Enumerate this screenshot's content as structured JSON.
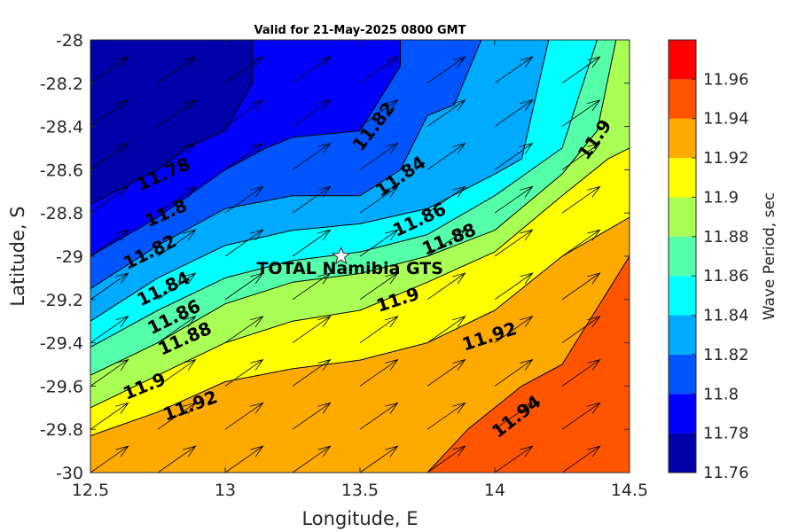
{
  "chart_data": {
    "type": "heatmap",
    "title": "Valid for 21-May-2025 0800 GMT",
    "xlabel": "Longitude, E",
    "ylabel": "Latitude, S",
    "colorbar_label": "Wave Period, sec",
    "xlim": [
      12.5,
      14.5
    ],
    "ylim": [
      -30,
      -28
    ],
    "x_ticks": [
      "12.5",
      "13",
      "13.5",
      "14",
      "14.5"
    ],
    "y_ticks": [
      "-28",
      "-28.2",
      "-28.4",
      "-28.6",
      "-28.8",
      "-29",
      "-29.2",
      "-29.4",
      "-29.6",
      "-29.8",
      "-30"
    ],
    "colorbar": {
      "range": [
        11.76,
        11.98
      ],
      "tick_labels": [
        "11.76",
        "11.78",
        "11.8",
        "11.82",
        "11.84",
        "11.86",
        "11.88",
        "11.9",
        "11.92",
        "11.94",
        "11.96"
      ],
      "bands": [
        {
          "from": 11.76,
          "to": 11.78,
          "color": "#0000AA"
        },
        {
          "from": 11.78,
          "to": 11.8,
          "color": "#0000FF"
        },
        {
          "from": 11.8,
          "to": 11.82,
          "color": "#0055FF"
        },
        {
          "from": 11.82,
          "to": 11.84,
          "color": "#00AAFF"
        },
        {
          "from": 11.84,
          "to": 11.86,
          "color": "#00FFFF"
        },
        {
          "from": 11.86,
          "to": 11.88,
          "color": "#55FFAA"
        },
        {
          "from": 11.88,
          "to": 11.9,
          "color": "#AAFF55"
        },
        {
          "from": 11.9,
          "to": 11.92,
          "color": "#FFFF00"
        },
        {
          "from": 11.92,
          "to": 11.94,
          "color": "#FFAA00"
        },
        {
          "from": 11.94,
          "to": 11.96,
          "color": "#FF5500"
        },
        {
          "from": 11.96,
          "to": 11.98,
          "color": "#FF0000"
        }
      ]
    },
    "contours": [
      {
        "level": 11.78,
        "points": [
          [
            12.5,
            -28.76
          ],
          [
            12.75,
            -28.6
          ],
          [
            12.85,
            -28.5
          ],
          [
            13.0,
            -28.42
          ],
          [
            13.1,
            -28.2
          ],
          [
            13.1,
            -28.0
          ]
        ]
      },
      {
        "level": 11.8,
        "points": [
          [
            12.5,
            -29.0
          ],
          [
            12.75,
            -28.82
          ],
          [
            13.0,
            -28.6
          ],
          [
            13.15,
            -28.5
          ],
          [
            13.25,
            -28.45
          ],
          [
            13.5,
            -28.42
          ],
          [
            13.65,
            -28.12
          ],
          [
            13.65,
            -28.0
          ]
        ]
      },
      {
        "level": 11.82,
        "points": [
          [
            12.5,
            -29.15
          ],
          [
            12.75,
            -28.95
          ],
          [
            13.0,
            -28.78
          ],
          [
            13.25,
            -28.72
          ],
          [
            13.5,
            -28.72
          ],
          [
            13.65,
            -28.6
          ],
          [
            13.75,
            -28.35
          ],
          [
            13.85,
            -28.3
          ],
          [
            13.95,
            -28.0
          ]
        ]
      },
      {
        "level": 11.84,
        "points": [
          [
            12.5,
            -29.3
          ],
          [
            12.75,
            -29.1
          ],
          [
            13.0,
            -28.95
          ],
          [
            13.25,
            -28.88
          ],
          [
            13.5,
            -28.85
          ],
          [
            13.75,
            -28.78
          ],
          [
            14.0,
            -28.62
          ],
          [
            14.1,
            -28.55
          ],
          [
            14.2,
            -28.0
          ]
        ]
      },
      {
        "level": 11.86,
        "points": [
          [
            12.5,
            -29.42
          ],
          [
            12.75,
            -29.25
          ],
          [
            13.0,
            -29.1
          ],
          [
            13.25,
            -29.02
          ],
          [
            13.5,
            -28.98
          ],
          [
            13.75,
            -28.9
          ],
          [
            14.0,
            -28.72
          ],
          [
            14.25,
            -28.5
          ],
          [
            14.38,
            -28.0
          ]
        ]
      },
      {
        "level": 11.88,
        "points": [
          [
            12.5,
            -29.55
          ],
          [
            12.75,
            -29.4
          ],
          [
            13.0,
            -29.22
          ],
          [
            13.25,
            -29.12
          ],
          [
            13.5,
            -29.08
          ],
          [
            13.75,
            -29.0
          ],
          [
            14.0,
            -28.88
          ],
          [
            14.25,
            -28.62
          ],
          [
            14.38,
            -28.42
          ],
          [
            14.45,
            -28.0
          ]
        ]
      },
      {
        "level": 11.9,
        "points": [
          [
            12.5,
            -29.7
          ],
          [
            12.75,
            -29.55
          ],
          [
            13.0,
            -29.4
          ],
          [
            13.25,
            -29.3
          ],
          [
            13.5,
            -29.25
          ],
          [
            13.75,
            -29.12
          ],
          [
            14.0,
            -28.98
          ],
          [
            14.25,
            -28.72
          ],
          [
            14.42,
            -28.55
          ],
          [
            14.5,
            -28.5
          ]
        ]
      },
      {
        "level": 11.92,
        "points": [
          [
            12.5,
            -29.83
          ],
          [
            12.75,
            -29.72
          ],
          [
            13.0,
            -29.58
          ],
          [
            13.25,
            -29.52
          ],
          [
            13.5,
            -29.48
          ],
          [
            13.75,
            -29.4
          ],
          [
            14.0,
            -29.25
          ],
          [
            14.25,
            -29.0
          ],
          [
            14.5,
            -28.82
          ]
        ]
      },
      {
        "level": 11.94,
        "points": [
          [
            13.75,
            -30.0
          ],
          [
            13.9,
            -29.8
          ],
          [
            14.1,
            -29.6
          ],
          [
            14.25,
            -29.5
          ],
          [
            14.5,
            -29.0
          ]
        ]
      }
    ],
    "contour_labels": [
      {
        "text": "11.78",
        "lon": 12.77,
        "lat": -28.62,
        "angle": -24
      },
      {
        "text": "11.8",
        "lon": 12.78,
        "lat": -28.8,
        "angle": -24
      },
      {
        "text": "11.82",
        "lon": 12.72,
        "lat": -28.98,
        "angle": -26
      },
      {
        "text": "11.84",
        "lon": 12.77,
        "lat": -29.15,
        "angle": -26
      },
      {
        "text": "11.86",
        "lon": 12.81,
        "lat": -29.28,
        "angle": -26
      },
      {
        "text": "11.88",
        "lon": 12.85,
        "lat": -29.38,
        "angle": -24
      },
      {
        "text": "11.9",
        "lon": 12.7,
        "lat": -29.6,
        "angle": -22
      },
      {
        "text": "11.92",
        "lon": 12.87,
        "lat": -29.69,
        "angle": -20
      },
      {
        "text": "11.82",
        "lon": 13.55,
        "lat": -28.4,
        "angle": -52
      },
      {
        "text": "11.84",
        "lon": 13.65,
        "lat": -28.63,
        "angle": -35
      },
      {
        "text": "11.86",
        "lon": 13.72,
        "lat": -28.83,
        "angle": -25
      },
      {
        "text": "11.88",
        "lon": 13.83,
        "lat": -28.92,
        "angle": -22
      },
      {
        "text": "11.9",
        "lon": 13.64,
        "lat": -29.2,
        "angle": -18
      },
      {
        "text": "11.92",
        "lon": 13.98,
        "lat": -29.37,
        "angle": -18
      },
      {
        "text": "11.9",
        "lon": 14.37,
        "lat": -28.46,
        "angle": -55
      },
      {
        "text": "11.94",
        "lon": 14.08,
        "lat": -29.74,
        "angle": -38
      }
    ],
    "site": {
      "name": "TOTAL Namibia GTS",
      "lon": 13.43,
      "lat": -29.0
    },
    "vectors": {
      "lons": [
        12.5,
        12.75,
        13.0,
        13.25,
        13.5,
        13.75,
        14.0,
        14.25,
        14.5
      ],
      "lats": [
        -28.0,
        -28.2,
        -28.4,
        -28.6,
        -28.8,
        -29.0,
        -29.2,
        -29.4,
        -29.6,
        -29.8,
        -30.0
      ],
      "direction_deg": 35
    }
  }
}
